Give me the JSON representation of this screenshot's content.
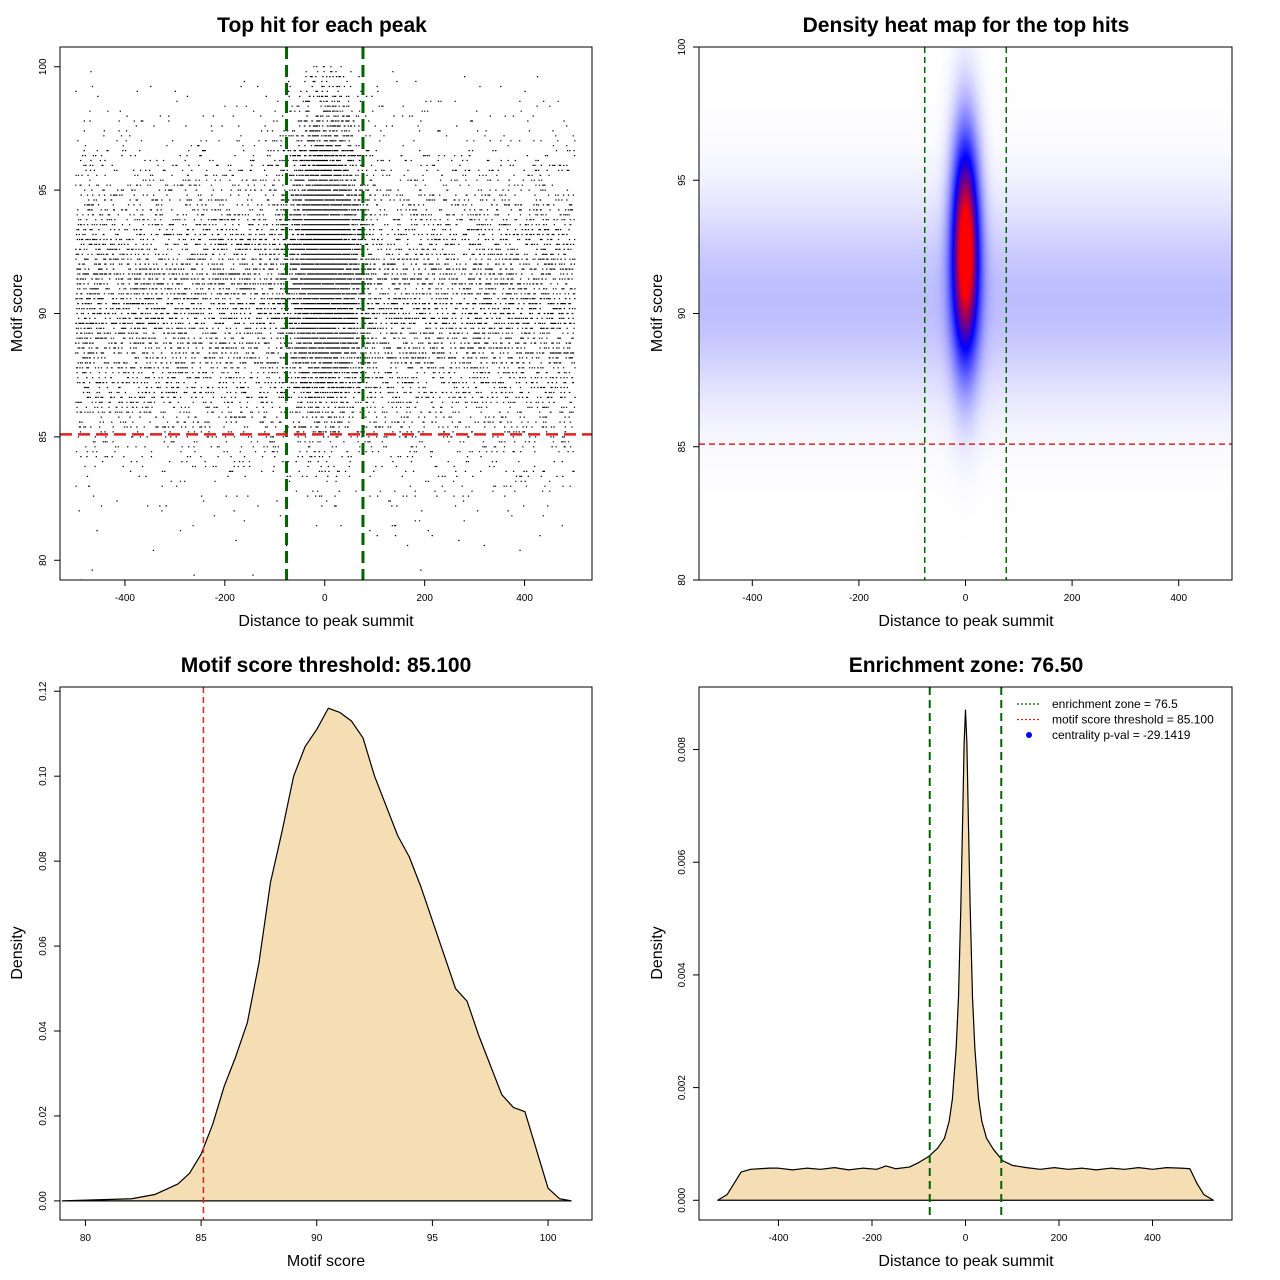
{
  "colors": {
    "green": "#006400",
    "red": "#dd2222",
    "fill": "#f5deb3",
    "heat_low": "#ffffff",
    "heat_mid": "#0000ff",
    "heat_high": "#ff0000"
  },
  "chart_data": [
    {
      "type": "scatter",
      "title": "Top hit for each peak",
      "xlabel": "Distance to peak summit",
      "ylabel": "Motif score",
      "xlim": [
        -530,
        535
      ],
      "ylim": [
        79.2,
        100.8
      ],
      "xticks": [
        -400,
        -200,
        0,
        200,
        400
      ],
      "xtick_labels": [
        "-400",
        "-200",
        "0",
        "200",
        "400"
      ],
      "yticks": [
        80,
        85,
        90,
        95,
        100
      ],
      "ytick_labels": [
        "80",
        "85",
        "90",
        "95",
        "100"
      ],
      "point_distribution": {
        "n_background": 9000,
        "n_central": 9000,
        "x_range": [
          -500,
          500
        ],
        "central_sd": 35,
        "score_mean_background": 90.3,
        "score_sd_background": 3.2,
        "score_mean_central": 92.5,
        "score_sd_central": 3.0,
        "score_cap": 100
      },
      "vlines": [
        -76.5,
        76.5
      ],
      "hline": 85.1
    },
    {
      "type": "heatmap",
      "title": "Density heat map for the top hits",
      "xlabel": "Distance to peak summit",
      "ylabel": "Motif score",
      "xlim": [
        -500,
        500
      ],
      "ylim": [
        80,
        100
      ],
      "xticks": [
        -400,
        -200,
        0,
        200,
        400
      ],
      "xtick_labels": [
        "-400",
        "-200",
        "0",
        "200",
        "400"
      ],
      "yticks": [
        80,
        85,
        90,
        95,
        100
      ],
      "ytick_labels": [
        "80",
        "85",
        "90",
        "95",
        "100"
      ],
      "hotspot": {
        "x_center": 0,
        "x_sd": 18,
        "y_center": 92.5,
        "y_sd": 2.9
      },
      "background": {
        "y_center": 90.5,
        "y_sd": 2.6
      },
      "vlines": [
        -76.5,
        76.5
      ],
      "hline": 85.1
    },
    {
      "type": "area",
      "title": "Motif score threshold: 85.100",
      "xlabel": "Motif score",
      "ylabel": "Density",
      "xlim": [
        78.9,
        101.9
      ],
      "ylim": [
        -0.0045,
        0.121
      ],
      "xticks": [
        80,
        85,
        90,
        95,
        100
      ],
      "xtick_labels": [
        "80",
        "85",
        "90",
        "95",
        "100"
      ],
      "yticks": [
        0,
        0.02,
        0.04,
        0.06,
        0.08,
        0.1,
        0.12
      ],
      "ytick_labels": [
        "0.00",
        "0.02",
        "0.04",
        "0.06",
        "0.08",
        "0.10",
        "0.12"
      ],
      "x": [
        79,
        82,
        83,
        84,
        84.5,
        85,
        85.5,
        86,
        86.5,
        87,
        87.5,
        88,
        88.5,
        89,
        89.5,
        90,
        90.5,
        91,
        91.5,
        92,
        92.5,
        93,
        93.5,
        94,
        94.5,
        95,
        95.5,
        96,
        96.5,
        97,
        97.5,
        98,
        98.5,
        99,
        99.5,
        100,
        100.5,
        101
      ],
      "y": [
        0,
        0.0005,
        0.0015,
        0.004,
        0.0065,
        0.011,
        0.018,
        0.027,
        0.034,
        0.042,
        0.056,
        0.075,
        0.087,
        0.1,
        0.107,
        0.111,
        0.116,
        0.115,
        0.113,
        0.109,
        0.1,
        0.093,
        0.086,
        0.081,
        0.074,
        0.066,
        0.058,
        0.05,
        0.047,
        0.039,
        0.032,
        0.025,
        0.022,
        0.021,
        0.012,
        0.003,
        0.0005,
        0
      ],
      "vline": 85.1
    },
    {
      "type": "area",
      "title": "Enrichment zone: 76.50",
      "xlabel": "Distance to peak summit",
      "ylabel": "Density",
      "xlim": [
        -570,
        570
      ],
      "ylim": [
        -0.00035,
        0.00911
      ],
      "xticks": [
        -400,
        -200,
        0,
        200,
        400
      ],
      "xtick_labels": [
        "-400",
        "-200",
        "0",
        "200",
        "400"
      ],
      "yticks": [
        0,
        0.002,
        0.004,
        0.006,
        0.008
      ],
      "ytick_labels": [
        "0.000",
        "0.002",
        "0.004",
        "0.006",
        "0.008"
      ],
      "x": [
        -530,
        -510,
        -495,
        -480,
        -460,
        -440,
        -420,
        -400,
        -370,
        -340,
        -310,
        -280,
        -250,
        -220,
        -190,
        -170,
        -150,
        -120,
        -100,
        -80,
        -60,
        -45,
        -35,
        -28,
        -20,
        -15,
        -10,
        -6,
        -3,
        0,
        3,
        6,
        10,
        15,
        20,
        28,
        35,
        45,
        60,
        80,
        100,
        130,
        160,
        190,
        220,
        250,
        280,
        310,
        340,
        370,
        400,
        430,
        460,
        480,
        495,
        510,
        530
      ],
      "y": [
        0,
        0.0001,
        0.0003,
        0.0005,
        0.00055,
        0.00056,
        0.00057,
        0.00057,
        0.00054,
        0.00057,
        0.00055,
        0.00058,
        0.00054,
        0.00057,
        0.00055,
        0.00061,
        0.00056,
        0.00059,
        0.00067,
        0.00077,
        0.00092,
        0.0011,
        0.0014,
        0.0018,
        0.0027,
        0.0036,
        0.0052,
        0.0068,
        0.0081,
        0.0087,
        0.0081,
        0.0068,
        0.0052,
        0.0036,
        0.0027,
        0.0018,
        0.0014,
        0.0011,
        0.0009,
        0.0007,
        0.00062,
        0.00058,
        0.00055,
        0.00058,
        0.00055,
        0.00057,
        0.00054,
        0.00057,
        0.00055,
        0.00058,
        0.00055,
        0.00058,
        0.00057,
        0.00056,
        0.0003,
        0.0001,
        0
      ],
      "vlines": [
        -76.5,
        76.5
      ],
      "legend": {
        "position": "top-right",
        "entries": [
          {
            "label": "enrichment zone = 76.5",
            "style": "dotted-line",
            "color": "#006400"
          },
          {
            "label": "motif score threshold = 85.100",
            "style": "dotted-line",
            "color": "#dd2222"
          },
          {
            "label": "centrality p-val = -29.1419",
            "style": "point",
            "color": "#0000ff"
          }
        ]
      }
    }
  ]
}
